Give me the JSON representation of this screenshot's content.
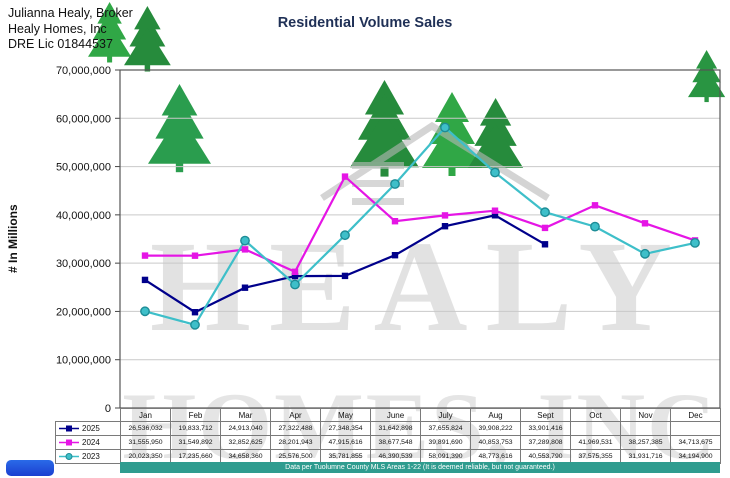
{
  "header": {
    "broker": "Julianna Healy, Broker",
    "company": "Healy Homes, Inc",
    "license": "DRE Lic 01844537"
  },
  "chart_data": {
    "type": "line",
    "title": "Residential Volume Sales",
    "ylabel": "# In Millions",
    "ylim": [
      0,
      70000000
    ],
    "y_ticks": [
      0,
      10000000,
      20000000,
      30000000,
      40000000,
      50000000,
      60000000,
      70000000
    ],
    "categories": [
      "Jan",
      "Feb",
      "Mar",
      "Apr",
      "May",
      "June",
      "July",
      "Aug",
      "Sept",
      "Oct",
      "Nov",
      "Dec"
    ],
    "series": [
      {
        "name": "2025",
        "color": "#00008B",
        "marker": "square",
        "values": [
          26536032,
          19833712,
          24913040,
          27322488,
          27348354,
          31642898,
          37655824,
          39908222,
          33901416,
          null,
          null,
          null
        ]
      },
      {
        "name": "2024",
        "color": "#E515E5",
        "marker": "square",
        "values": [
          31555950,
          31549892,
          32852625,
          28201943,
          47915616,
          38677548,
          39891690,
          40853753,
          37289808,
          41969531,
          38257385,
          34713675
        ]
      },
      {
        "name": "2023",
        "color": "#3EBFC9",
        "marker": "circle",
        "marker_stroke": "#1D8C96",
        "values": [
          20023350,
          17235660,
          34658360,
          25576500,
          35781855,
          46390539,
          58091390,
          48773616,
          40553790,
          37575355,
          31931716,
          34194900
        ]
      }
    ],
    "footnote": "Data per Tuolumne County MLS Areas 1-22 (It is deemed reliable, but not guaranteed.)",
    "legend_position": "table-left",
    "grid": true
  }
}
